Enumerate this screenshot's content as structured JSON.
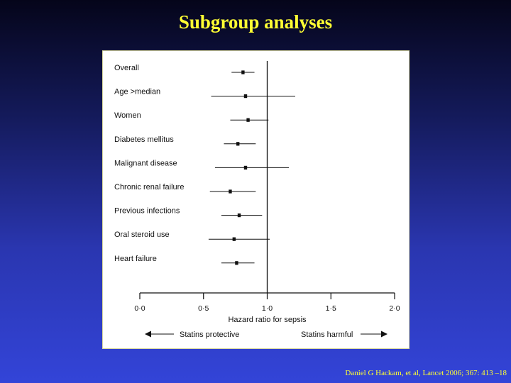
{
  "slide": {
    "title": "Subgroup analyses",
    "citation": "Daniel G Hackam, et al, Lancet 2006; 367: 413 –18"
  },
  "colors": {
    "title": "#ffff33",
    "panel_bg": "#ffffff",
    "ink": "#111111"
  },
  "chart_data": {
    "type": "forest",
    "xlabel": "Hazard ratio for sepsis",
    "xlim": [
      0.0,
      2.0
    ],
    "x_ticks": [
      0.0,
      0.5,
      1.0,
      1.5,
      2.0
    ],
    "x_tick_labels": [
      "0·0",
      "0·5",
      "1·0",
      "1·5",
      "2·0"
    ],
    "reference_line": 1.0,
    "left_annotation": "Statins protective",
    "right_annotation": "Statins harmful",
    "rows": [
      {
        "label": "Overall",
        "estimate": 0.81,
        "lower": 0.72,
        "upper": 0.9
      },
      {
        "label": "Age >median",
        "estimate": 0.83,
        "lower": 0.56,
        "upper": 1.22
      },
      {
        "label": "Women",
        "estimate": 0.85,
        "lower": 0.71,
        "upper": 1.01
      },
      {
        "label": "Diabetes mellitus",
        "estimate": 0.77,
        "lower": 0.66,
        "upper": 0.91
      },
      {
        "label": "Malignant disease",
        "estimate": 0.83,
        "lower": 0.59,
        "upper": 1.17
      },
      {
        "label": "Chronic renal failure",
        "estimate": 0.71,
        "lower": 0.55,
        "upper": 0.91
      },
      {
        "label": "Previous infections",
        "estimate": 0.78,
        "lower": 0.64,
        "upper": 0.96
      },
      {
        "label": "Oral steroid use",
        "estimate": 0.74,
        "lower": 0.54,
        "upper": 1.02
      },
      {
        "label": "Heart failure",
        "estimate": 0.76,
        "lower": 0.64,
        "upper": 0.9
      }
    ]
  }
}
